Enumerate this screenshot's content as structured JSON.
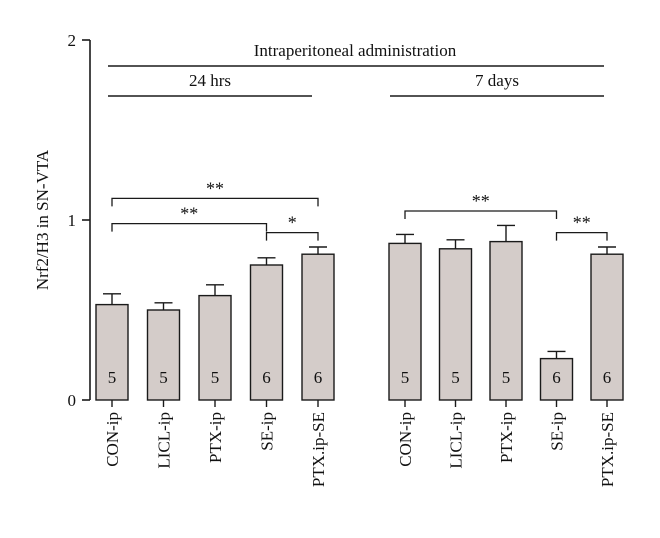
{
  "chart_data": {
    "type": "bar",
    "ylabel": "Nrf2/H3 in SN-VTA",
    "ylim": [
      0,
      2
    ],
    "yticks": [
      "0",
      "1",
      "2"
    ],
    "bar_color": "#d4ccc9",
    "edge_color": "#1a1a1a",
    "header": "Intraperitoneal administration",
    "groups": [
      {
        "label": "24 hrs",
        "categories": [
          "CON-ip",
          "LICL-ip",
          "PTX-ip",
          "SE-ip",
          "PTX.ip-SE"
        ],
        "values": [
          0.53,
          0.5,
          0.58,
          0.75,
          0.81
        ],
        "errors": [
          0.06,
          0.04,
          0.06,
          0.04,
          0.04
        ],
        "n": [
          "5",
          "5",
          "5",
          "6",
          "6"
        ]
      },
      {
        "label": "7 days",
        "categories": [
          "CON-ip",
          "LICL-ip",
          "PTX-ip",
          "SE-ip",
          "PTX.ip-SE"
        ],
        "values": [
          0.87,
          0.84,
          0.88,
          0.23,
          0.81
        ],
        "errors": [
          0.05,
          0.05,
          0.09,
          0.04,
          0.04
        ],
        "n": [
          "5",
          "5",
          "5",
          "6",
          "6"
        ]
      }
    ],
    "significance": [
      {
        "group": 0,
        "from": 0,
        "to": 4,
        "label": "**",
        "level": 1.12
      },
      {
        "group": 0,
        "from": 0,
        "to": 3,
        "label": "**",
        "level": 0.98
      },
      {
        "group": 0,
        "from": 3,
        "to": 4,
        "label": "*",
        "level": 0.93
      },
      {
        "group": 1,
        "from": 0,
        "to": 3,
        "label": "**",
        "level": 1.05
      },
      {
        "group": 1,
        "from": 3,
        "to": 4,
        "label": "**",
        "level": 0.93
      }
    ]
  }
}
